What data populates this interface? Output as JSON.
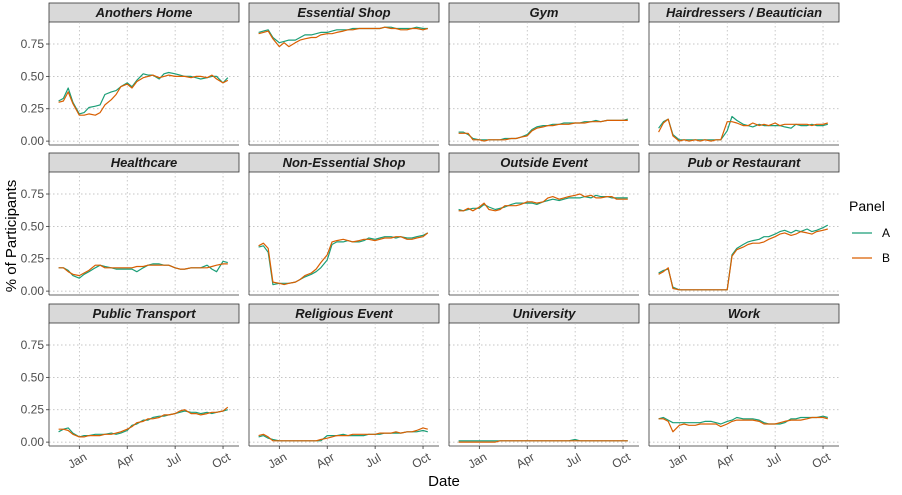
{
  "chart_data": {
    "type": "line",
    "facet_layout": "4 columns x 3 rows",
    "xlabel": "Date",
    "ylabel": "% of Participants",
    "ylim": [
      -0.03,
      0.92
    ],
    "y_ticks": [
      0,
      0.25,
      0.5,
      0.75
    ],
    "y_tick_labels": [
      "0.00",
      "0.25",
      "0.50",
      "0.75"
    ],
    "x_ticks": [
      {
        "month": 1,
        "label": "Jan"
      },
      {
        "month": 4,
        "label": "Apr"
      },
      {
        "month": 7,
        "label": "Jul"
      },
      {
        "month": 10,
        "label": "Oct"
      }
    ],
    "xlim_months": [
      -0.9,
      11.0
    ],
    "grid": "dotted major gridlines",
    "legend": {
      "title": "Panel",
      "position": "right",
      "entries": [
        {
          "name": "A",
          "color": "#1b9e77"
        },
        {
          "name": "B",
          "color": "#d95f02"
        }
      ]
    },
    "x": [
      -0.3,
      0.0,
      0.3,
      0.6,
      1.0,
      1.3,
      1.6,
      2.0,
      2.3,
      2.6,
      3.0,
      3.3,
      3.6,
      4.0,
      4.3,
      4.6,
      5.0,
      5.3,
      5.6,
      6.0,
      6.3,
      6.6,
      7.0,
      7.3,
      7.6,
      8.0,
      8.3,
      8.6,
      9.0,
      9.3,
      9.6,
      10.0,
      10.3
    ],
    "panels": [
      {
        "title": "Anothers Home",
        "A": [
          0.31,
          0.33,
          0.41,
          0.3,
          0.21,
          0.22,
          0.26,
          0.27,
          0.28,
          0.36,
          0.38,
          0.39,
          0.42,
          0.45,
          0.42,
          0.47,
          0.52,
          0.51,
          0.51,
          0.48,
          0.52,
          0.53,
          0.52,
          0.51,
          0.5,
          0.5,
          0.49,
          0.48,
          0.49,
          0.5,
          0.5,
          0.45,
          0.49
        ],
        "B": [
          0.3,
          0.31,
          0.38,
          0.29,
          0.2,
          0.2,
          0.21,
          0.2,
          0.22,
          0.28,
          0.32,
          0.36,
          0.42,
          0.44,
          0.41,
          0.46,
          0.49,
          0.5,
          0.51,
          0.49,
          0.5,
          0.51,
          0.5,
          0.5,
          0.5,
          0.49,
          0.5,
          0.5,
          0.49,
          0.51,
          0.48,
          0.45,
          0.47
        ]
      },
      {
        "title": "Essential Shop",
        "A": [
          0.84,
          0.85,
          0.86,
          0.8,
          0.76,
          0.77,
          0.78,
          0.78,
          0.8,
          0.82,
          0.82,
          0.83,
          0.84,
          0.84,
          0.85,
          0.86,
          0.86,
          0.86,
          0.87,
          0.87,
          0.87,
          0.87,
          0.87,
          0.87,
          0.88,
          0.88,
          0.87,
          0.87,
          0.87,
          0.87,
          0.88,
          0.87,
          0.87
        ],
        "B": [
          0.83,
          0.84,
          0.85,
          0.79,
          0.73,
          0.76,
          0.73,
          0.76,
          0.78,
          0.79,
          0.8,
          0.8,
          0.82,
          0.83,
          0.83,
          0.84,
          0.85,
          0.86,
          0.86,
          0.87,
          0.87,
          0.87,
          0.87,
          0.87,
          0.88,
          0.87,
          0.87,
          0.86,
          0.86,
          0.87,
          0.87,
          0.86,
          0.87
        ]
      },
      {
        "title": "Gym",
        "A": [
          0.07,
          0.07,
          0.05,
          0.02,
          0.01,
          0.01,
          0.01,
          0.01,
          0.01,
          0.02,
          0.02,
          0.02,
          0.03,
          0.05,
          0.09,
          0.11,
          0.12,
          0.12,
          0.13,
          0.13,
          0.14,
          0.14,
          0.14,
          0.14,
          0.15,
          0.15,
          0.16,
          0.15,
          0.16,
          0.16,
          0.16,
          0.16,
          0.17
        ],
        "B": [
          0.06,
          0.06,
          0.06,
          0.01,
          0.01,
          0.0,
          0.01,
          0.01,
          0.01,
          0.01,
          0.02,
          0.02,
          0.03,
          0.04,
          0.08,
          0.1,
          0.11,
          0.12,
          0.12,
          0.13,
          0.13,
          0.13,
          0.14,
          0.14,
          0.14,
          0.15,
          0.15,
          0.15,
          0.16,
          0.16,
          0.16,
          0.16,
          0.16
        ]
      },
      {
        "title": "Hairdressers / Beautician",
        "A": [
          0.1,
          0.15,
          0.17,
          0.05,
          0.01,
          0.01,
          0.01,
          0.01,
          0.01,
          0.01,
          0.01,
          0.01,
          0.01,
          0.08,
          0.19,
          0.16,
          0.13,
          0.12,
          0.11,
          0.13,
          0.12,
          0.12,
          0.12,
          0.12,
          0.11,
          0.1,
          0.13,
          0.12,
          0.12,
          0.13,
          0.12,
          0.12,
          0.13
        ],
        "B": [
          0.07,
          0.14,
          0.17,
          0.04,
          0.0,
          0.01,
          0.0,
          0.01,
          0.0,
          0.01,
          0.0,
          0.01,
          0.01,
          0.15,
          0.15,
          0.14,
          0.12,
          0.12,
          0.14,
          0.12,
          0.13,
          0.12,
          0.14,
          0.12,
          0.13,
          0.13,
          0.13,
          0.13,
          0.13,
          0.12,
          0.13,
          0.13,
          0.14
        ]
      },
      {
        "title": "Healthcare",
        "A": [
          0.18,
          0.18,
          0.16,
          0.12,
          0.1,
          0.13,
          0.15,
          0.18,
          0.2,
          0.19,
          0.18,
          0.17,
          0.17,
          0.17,
          0.17,
          0.15,
          0.18,
          0.2,
          0.21,
          0.21,
          0.2,
          0.2,
          0.18,
          0.17,
          0.17,
          0.18,
          0.18,
          0.18,
          0.2,
          0.17,
          0.15,
          0.23,
          0.22
        ],
        "B": [
          0.18,
          0.18,
          0.15,
          0.13,
          0.12,
          0.14,
          0.16,
          0.2,
          0.2,
          0.18,
          0.18,
          0.18,
          0.18,
          0.18,
          0.18,
          0.19,
          0.19,
          0.2,
          0.2,
          0.2,
          0.2,
          0.2,
          0.18,
          0.17,
          0.17,
          0.18,
          0.18,
          0.18,
          0.18,
          0.19,
          0.2,
          0.21,
          0.21
        ]
      },
      {
        "title": "Non-Essential Shop",
        "A": [
          0.34,
          0.35,
          0.3,
          0.05,
          0.06,
          0.06,
          0.06,
          0.07,
          0.09,
          0.11,
          0.13,
          0.15,
          0.18,
          0.24,
          0.36,
          0.38,
          0.38,
          0.39,
          0.38,
          0.38,
          0.39,
          0.41,
          0.4,
          0.41,
          0.42,
          0.42,
          0.41,
          0.42,
          0.41,
          0.41,
          0.42,
          0.43,
          0.45
        ],
        "B": [
          0.35,
          0.37,
          0.33,
          0.07,
          0.06,
          0.05,
          0.06,
          0.07,
          0.09,
          0.12,
          0.14,
          0.17,
          0.22,
          0.28,
          0.38,
          0.39,
          0.4,
          0.39,
          0.38,
          0.39,
          0.4,
          0.4,
          0.39,
          0.4,
          0.41,
          0.41,
          0.42,
          0.42,
          0.4,
          0.4,
          0.41,
          0.42,
          0.45
        ]
      },
      {
        "title": "Outside Event",
        "A": [
          0.63,
          0.62,
          0.63,
          0.64,
          0.64,
          0.67,
          0.65,
          0.63,
          0.64,
          0.65,
          0.67,
          0.68,
          0.68,
          0.68,
          0.68,
          0.67,
          0.69,
          0.7,
          0.71,
          0.7,
          0.71,
          0.72,
          0.72,
          0.72,
          0.73,
          0.72,
          0.74,
          0.73,
          0.73,
          0.72,
          0.72,
          0.72,
          0.72
        ],
        "B": [
          0.62,
          0.62,
          0.64,
          0.62,
          0.65,
          0.68,
          0.63,
          0.62,
          0.63,
          0.66,
          0.66,
          0.66,
          0.67,
          0.69,
          0.69,
          0.68,
          0.69,
          0.72,
          0.73,
          0.71,
          0.72,
          0.73,
          0.74,
          0.75,
          0.73,
          0.74,
          0.72,
          0.72,
          0.73,
          0.73,
          0.71,
          0.71,
          0.71
        ]
      },
      {
        "title": "Pub or Restaurant",
        "A": [
          0.14,
          0.16,
          0.17,
          0.03,
          0.01,
          0.01,
          0.01,
          0.01,
          0.01,
          0.01,
          0.01,
          0.01,
          0.01,
          0.01,
          0.28,
          0.33,
          0.36,
          0.38,
          0.39,
          0.4,
          0.42,
          0.42,
          0.44,
          0.46,
          0.47,
          0.45,
          0.47,
          0.46,
          0.48,
          0.46,
          0.47,
          0.49,
          0.51
        ],
        "B": [
          0.13,
          0.15,
          0.18,
          0.02,
          0.01,
          0.01,
          0.01,
          0.01,
          0.01,
          0.01,
          0.01,
          0.01,
          0.01,
          0.01,
          0.27,
          0.32,
          0.34,
          0.36,
          0.37,
          0.37,
          0.38,
          0.4,
          0.42,
          0.44,
          0.45,
          0.43,
          0.44,
          0.46,
          0.45,
          0.44,
          0.46,
          0.47,
          0.48
        ]
      },
      {
        "title": "Public Transport",
        "A": [
          0.08,
          0.1,
          0.11,
          0.07,
          0.04,
          0.05,
          0.05,
          0.06,
          0.06,
          0.06,
          0.07,
          0.06,
          0.07,
          0.09,
          0.13,
          0.14,
          0.17,
          0.17,
          0.19,
          0.2,
          0.2,
          0.21,
          0.22,
          0.23,
          0.24,
          0.23,
          0.23,
          0.22,
          0.23,
          0.22,
          0.23,
          0.24,
          0.25
        ],
        "B": [
          0.1,
          0.1,
          0.09,
          0.06,
          0.04,
          0.04,
          0.05,
          0.05,
          0.05,
          0.06,
          0.06,
          0.07,
          0.08,
          0.1,
          0.12,
          0.15,
          0.16,
          0.18,
          0.18,
          0.19,
          0.21,
          0.21,
          0.22,
          0.24,
          0.25,
          0.22,
          0.22,
          0.21,
          0.22,
          0.23,
          0.23,
          0.24,
          0.27
        ]
      },
      {
        "title": "Religious Event",
        "A": [
          0.04,
          0.05,
          0.03,
          0.02,
          0.01,
          0.01,
          0.01,
          0.01,
          0.01,
          0.01,
          0.01,
          0.01,
          0.01,
          0.05,
          0.05,
          0.05,
          0.06,
          0.05,
          0.05,
          0.05,
          0.05,
          0.06,
          0.06,
          0.06,
          0.07,
          0.07,
          0.07,
          0.07,
          0.08,
          0.08,
          0.08,
          0.09,
          0.08
        ],
        "B": [
          0.05,
          0.06,
          0.04,
          0.01,
          0.01,
          0.01,
          0.01,
          0.01,
          0.01,
          0.01,
          0.01,
          0.01,
          0.02,
          0.03,
          0.04,
          0.05,
          0.05,
          0.05,
          0.06,
          0.06,
          0.06,
          0.06,
          0.06,
          0.07,
          0.07,
          0.07,
          0.08,
          0.07,
          0.08,
          0.08,
          0.09,
          0.11,
          0.1
        ]
      },
      {
        "title": "University",
        "A": [
          0.01,
          0.01,
          0.01,
          0.01,
          0.01,
          0.01,
          0.01,
          0.01,
          0.01,
          0.01,
          0.01,
          0.01,
          0.01,
          0.01,
          0.01,
          0.01,
          0.01,
          0.01,
          0.01,
          0.01,
          0.01,
          0.01,
          0.02,
          0.01,
          0.01,
          0.01,
          0.01,
          0.01,
          0.01,
          0.01,
          0.01,
          0.01,
          0.01
        ],
        "B": [
          0.0,
          0.0,
          0.0,
          0.0,
          0.0,
          0.0,
          0.0,
          0.0,
          0.01,
          0.01,
          0.01,
          0.01,
          0.01,
          0.01,
          0.01,
          0.01,
          0.01,
          0.01,
          0.01,
          0.01,
          0.01,
          0.01,
          0.01,
          0.01,
          0.01,
          0.01,
          0.01,
          0.01,
          0.01,
          0.01,
          0.01,
          0.01,
          0.01
        ]
      },
      {
        "title": "Work",
        "A": [
          0.18,
          0.19,
          0.17,
          0.15,
          0.15,
          0.15,
          0.15,
          0.15,
          0.15,
          0.16,
          0.16,
          0.15,
          0.14,
          0.16,
          0.17,
          0.19,
          0.18,
          0.18,
          0.18,
          0.17,
          0.15,
          0.14,
          0.14,
          0.14,
          0.15,
          0.18,
          0.18,
          0.19,
          0.19,
          0.19,
          0.19,
          0.2,
          0.19
        ],
        "B": [
          0.18,
          0.18,
          0.16,
          0.08,
          0.13,
          0.14,
          0.13,
          0.13,
          0.14,
          0.14,
          0.14,
          0.14,
          0.12,
          0.14,
          0.16,
          0.17,
          0.17,
          0.17,
          0.17,
          0.16,
          0.14,
          0.14,
          0.14,
          0.15,
          0.16,
          0.17,
          0.17,
          0.17,
          0.18,
          0.19,
          0.19,
          0.19,
          0.18
        ]
      }
    ]
  }
}
